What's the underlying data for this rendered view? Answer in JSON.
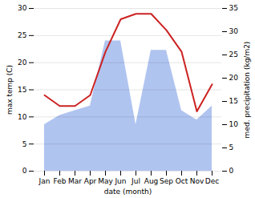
{
  "chart_data": {
    "type": "line",
    "xlabel": "date (month)",
    "ylabel": "max temp (C)",
    "y2label": "med. precipitation (kg/m2)",
    "categories": [
      "Jan",
      "Feb",
      "Mar",
      "Apr",
      "May",
      "Jun",
      "Jul",
      "Aug",
      "Sep",
      "Oct",
      "Nov",
      "Dec"
    ],
    "series": [
      {
        "type": "area",
        "axis": "y2",
        "color": "#b0c4f0",
        "values": [
          10,
          12,
          13,
          14,
          28,
          28,
          10,
          26,
          26,
          13,
          11,
          14
        ]
      },
      {
        "type": "line",
        "color": "#cc2222",
        "values": [
          14,
          12,
          12,
          14,
          22,
          28,
          29,
          29,
          26,
          22,
          11,
          16
        ]
      }
    ],
    "ylim": [
      0,
      30
    ],
    "yticks": [
      0,
      5,
      10,
      15,
      20,
      25,
      30
    ],
    "y2lim": [
      0,
      35
    ],
    "y2ticks": [
      0,
      5,
      10,
      15,
      20,
      25,
      30,
      35
    ],
    "grid": true
  }
}
